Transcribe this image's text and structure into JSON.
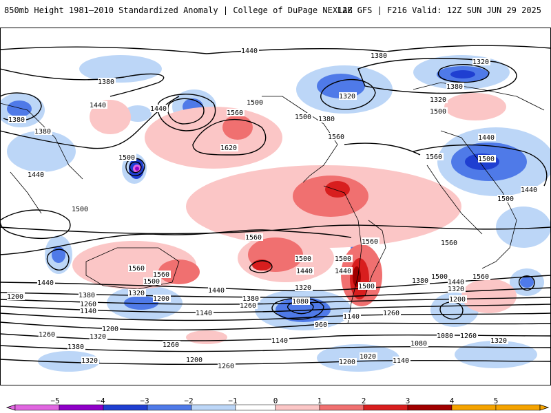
{
  "header": {
    "title_left": "850mb Height 1981–2010 Standardized Anomaly | College of DuPage NEXLAB",
    "title_right": "12Z GFS | F216 Valid: 12Z SUN JUN 29 2025"
  },
  "colors": {
    "anom_neg5": "#e066e0",
    "anom_neg4": "#8f00c8",
    "anom_neg3": "#1f3fd1",
    "anom_neg2": "#4f7ae8",
    "anom_neg1": "#bcd6f7",
    "anom_pos1": "#fbc6c6",
    "anom_pos2": "#f07070",
    "anom_pos3": "#d81e1e",
    "anom_pos4": "#a00000",
    "anom_pos5": "#f5a300",
    "contour": "#000000",
    "coast": "#000000"
  },
  "colorbar": {
    "ticks": [
      "−5",
      "−4",
      "−3",
      "−2",
      "−1",
      "0",
      "1",
      "2",
      "3",
      "4",
      "5"
    ]
  },
  "contour_labels": [
    "1440",
    "1380",
    "1320",
    "1380",
    "1440",
    "1380",
    "1380",
    "1440",
    "1440",
    "1500",
    "1560",
    "1620",
    "1500",
    "1500",
    "1380",
    "1320",
    "1380",
    "1320",
    "1380",
    "1500",
    "1440",
    "1560",
    "1500",
    "1440",
    "1500",
    "1560",
    "1500",
    "1560",
    "1560",
    "1500",
    "1560",
    "1560",
    "1560",
    "1500",
    "1440",
    "1440",
    "1380",
    "1320",
    "1260",
    "1200",
    "1140",
    "1200",
    "1260",
    "1320",
    "1380",
    "1440",
    "1500",
    "1560",
    "1500",
    "1440",
    "1380",
    "1320",
    "1260",
    "1200",
    "1140",
    "1080",
    "1020",
    "960",
    "1080",
    "1140",
    "1200",
    "1260",
    "1320",
    "1380",
    "1440",
    "1500",
    "1560",
    "1380",
    "1320",
    "1260",
    "1200",
    "1140",
    "1080",
    "1260",
    "1320",
    "1140",
    "1200",
    "1260"
  ]
}
